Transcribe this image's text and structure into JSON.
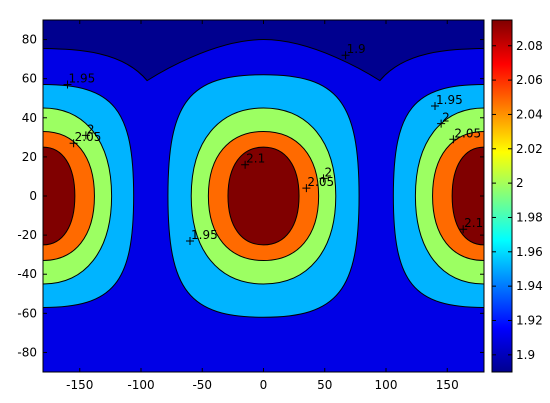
{
  "chart_data": {
    "type": "filled-contour",
    "title": "",
    "xlabel": "",
    "ylabel": "",
    "xlim": [
      -180,
      180
    ],
    "ylim": [
      -90,
      90
    ],
    "x_ticks": [
      -150,
      -100,
      -50,
      0,
      50,
      100,
      150
    ],
    "y_ticks": [
      -80,
      -60,
      -40,
      -20,
      0,
      20,
      40,
      60,
      80
    ],
    "x_tick_labels": [
      "-150",
      "-100",
      "-50",
      "0",
      "50",
      "100",
      "150"
    ],
    "y_tick_labels": [
      "-80",
      "-60",
      "-40",
      "-20",
      "0",
      "20",
      "40",
      "60",
      "80"
    ],
    "colormap": "jet",
    "levels": [
      1.9,
      1.95,
      2.0,
      2.05,
      2.1
    ],
    "level_colors": [
      "#00008f",
      "#0000e6",
      "#00b4ff",
      "#9cff62",
      "#ff6a00",
      "#800000"
    ],
    "colorbar": {
      "range": [
        1.89,
        2.095
      ],
      "ticks": [
        1.9,
        1.92,
        1.94,
        1.96,
        1.98,
        2.0,
        2.02,
        2.04,
        2.06,
        2.08
      ],
      "tick_labels": [
        "1.9",
        "1.92",
        "1.94",
        "1.96",
        "1.98",
        "2",
        "2.02",
        "2.04",
        "2.06",
        "2.08"
      ]
    },
    "maxima": [
      {
        "x": 0,
        "y": 0,
        "value": 2.1
      },
      {
        "x": -180,
        "y": 0,
        "value": 2.1
      },
      {
        "x": 180,
        "y": 0,
        "value": 2.1
      }
    ],
    "contour_labels": [
      {
        "text": "1.9",
        "x": 67,
        "y": 72
      },
      {
        "text": "1.95",
        "x": -160,
        "y": 57
      },
      {
        "text": "2",
        "x": -145,
        "y": 31
      },
      {
        "text": "2.05",
        "x": -155,
        "y": 27
      },
      {
        "text": "2.1",
        "x": -15,
        "y": 16
      },
      {
        "text": "2",
        "x": 49,
        "y": 9
      },
      {
        "text": "2.05",
        "x": 35,
        "y": 4
      },
      {
        "text": "1.95",
        "x": -60,
        "y": -23
      },
      {
        "text": "1.95",
        "x": 140,
        "y": 46
      },
      {
        "text": "2",
        "x": 145,
        "y": 37
      },
      {
        "text": "2.05",
        "x": 155,
        "y": 29
      },
      {
        "text": "2.1",
        "x": 163,
        "y": -17
      }
    ]
  }
}
